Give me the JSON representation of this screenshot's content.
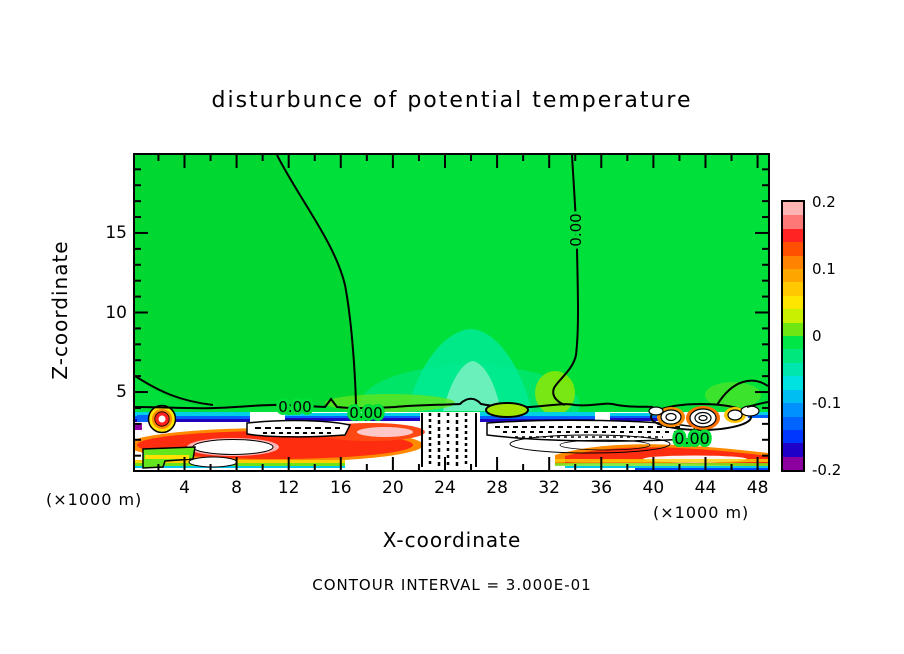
{
  "title": "disturbunce of potential temperature",
  "axes": {
    "x": {
      "label": "X-coordinate",
      "unit_note_left": "(×1000 m)",
      "unit_note_right": "(×1000 m)",
      "tick_labels": [
        "4",
        "8",
        "12",
        "16",
        "20",
        "24",
        "28",
        "32",
        "36",
        "40",
        "44",
        "48"
      ],
      "major_values": [
        4,
        8,
        12,
        16,
        20,
        24,
        28,
        32,
        36,
        40,
        44,
        48
      ],
      "minor_step": 2,
      "min": 0.2,
      "max": 48.8
    },
    "y": {
      "label": "Z-coordinate",
      "tick_labels": [
        "5",
        "10",
        "15"
      ],
      "major_values": [
        5,
        10,
        15
      ],
      "minor_step": 1,
      "min": 0.1,
      "max": 19.9
    }
  },
  "colorbar": {
    "labels": [
      "0.2",
      "0.1",
      "0",
      "-0.1",
      "-0.2"
    ],
    "label_values": [
      0.2,
      0.1,
      0,
      -0.1,
      -0.2
    ],
    "min": -0.2,
    "max": 0.2,
    "segment_step": 0.02,
    "colors_top_to_bottom": [
      "#FFB4B4",
      "#FF7878",
      "#FF2323",
      "#FF5000",
      "#FF8200",
      "#FFA500",
      "#FFC800",
      "#FFE600",
      "#C8F000",
      "#6EE614",
      "#00E646",
      "#00E87D",
      "#00E6AF",
      "#00E1E1",
      "#00BDF2",
      "#0091FF",
      "#0064FF",
      "#0037FF",
      "#1E00C8",
      "#8C00A0"
    ]
  },
  "caption": "CONTOUR INTERVAL = 3.000E-01",
  "contour_labels": {
    "zero_1": "0.00",
    "zero_2": "0.00",
    "zero_3": "0.00",
    "zero_rotated": "0.00"
  },
  "chart_data": {
    "type": "heatmap",
    "subtype": "filled_contour_with_line_contours",
    "title": "disturbunce of potential temperature",
    "xlabel": "X-coordinate",
    "ylabel": "Z-coordinate",
    "x_units": "(×1000 m)",
    "y_units": "(×1000 m)",
    "xlim": [
      0.2,
      48.8
    ],
    "ylim": [
      0.1,
      19.9
    ],
    "x_major_ticks": [
      4,
      8,
      12,
      16,
      20,
      24,
      28,
      32,
      36,
      40,
      44,
      48
    ],
    "x_minor_tick_step": 2,
    "y_major_ticks": [
      5,
      10,
      15
    ],
    "y_minor_tick_step": 1,
    "grid": false,
    "legend_position": "right-colorbar",
    "fill_levels_range": [
      -0.2,
      0.2
    ],
    "fill_level_step": 0.02,
    "line_contour_interval": 0.3,
    "line_contour_interval_label": "CONTOUR INTERVAL = 3.000E-01",
    "zero_contour_label": "0.00",
    "features": [
      "Field is near zero (bright green fill) everywhere above z ≈ 5 (×1000 m)",
      "Zero contour (labeled 0.00) descends from the top boundary near x ≈ 11 and bends left to join the boundary-layer top near z ≈ 4",
      "Second zero contour (rotated 0.00 label) descends from the top boundary near x ≈ 34 down to z ≈ 5 near x ≈ 32",
      "Faint cyan/teal positive dome centered near x ≈ 26, reaching up to z ≈ 9",
      "Turbulent boundary layer below z ≈ 4 with strong alternating anomalies exceeding ±0.2 (white cores beyond color scale)",
      "Thin cyan/blue/navy negative stripes along the boundary-layer top near z ≈ 4",
      "Strong red/orange positive streaks near z ≈ 1-2 around x ≈ 2-20 and x ≈ 30-49",
      "Dashed (negative) line contours fill white saturated areas between x ≈ 14-33 near the surface",
      "Small closed rainbow-ringed vortices at the left edge (x ≈ 1, z ≈ 3) and right side (x ≈ 41-46, z ≈ 3)",
      "Zero contour labels 0.00 on the boundary-layer top near x ≈ 12.5, x ≈ 18 and x ≈ 43"
    ]
  }
}
